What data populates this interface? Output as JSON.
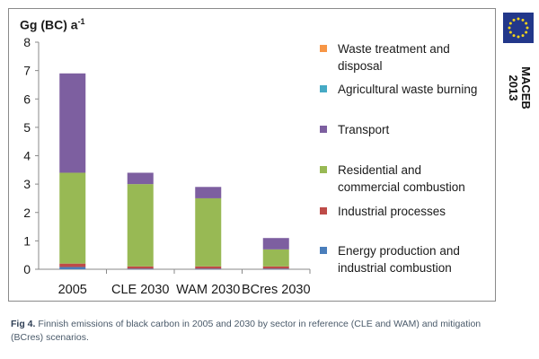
{
  "chart_data": {
    "type": "bar",
    "stacked": true,
    "ylabel": "Gg (BC) a",
    "ylabel_sup": "-1",
    "ylim": [
      0,
      8
    ],
    "yticks": [
      "0",
      "1",
      "2",
      "3",
      "4",
      "5",
      "6",
      "7",
      "8"
    ],
    "categories": [
      "2005",
      "CLE 2030",
      "WAM 2030",
      "BCres 2030"
    ],
    "grid": false,
    "legend_position": "right",
    "series": [
      {
        "name": "Energy production and industrial combustion",
        "color": "#4a7ebb",
        "values": [
          0.08,
          0.02,
          0.02,
          0.02
        ]
      },
      {
        "name": "Industrial processes",
        "color": "#be4b48",
        "values": [
          0.12,
          0.08,
          0.08,
          0.08
        ]
      },
      {
        "name": "Residential and commercial combustion",
        "color": "#98b954",
        "values": [
          3.2,
          2.9,
          2.4,
          0.6
        ]
      },
      {
        "name": "Transport",
        "color": "#7d5fa0",
        "values": [
          3.5,
          0.4,
          0.4,
          0.4
        ]
      },
      {
        "name": "Agricultural waste burning",
        "color": "#46aac5",
        "values": [
          0,
          0,
          0,
          0
        ]
      },
      {
        "name": "Waste treatment and disposal",
        "color": "#f79646",
        "values": [
          0,
          0,
          0,
          0
        ]
      }
    ]
  },
  "legend": [
    {
      "line1": "Waste treatment and",
      "line2": "disposal",
      "color": "#f79646"
    },
    {
      "line1": "Agricultural waste burning",
      "line2": "",
      "color": "#46aac5"
    },
    {
      "line1": "Transport",
      "line2": "",
      "color": "#7d5fa0"
    },
    {
      "line1": "Residential and",
      "line2": "commercial combustion",
      "color": "#98b954"
    },
    {
      "line1": "Industrial processes",
      "line2": "",
      "color": "#be4b48"
    },
    {
      "line1": "Energy production and",
      "line2": "industrial combustion",
      "color": "#4a7ebb"
    }
  ],
  "badge": {
    "name": "MACEB",
    "year": "2013",
    "flag_color": "#22378a",
    "star_color": "#f2d21b",
    "icon": "eu-flag-icon"
  },
  "caption": {
    "label": "Fig 4.",
    "text": "Finnish emissions of black carbon in 2005 and 2030 by sector in reference (CLE and WAM) and mitigation (BCres) scenarios."
  }
}
